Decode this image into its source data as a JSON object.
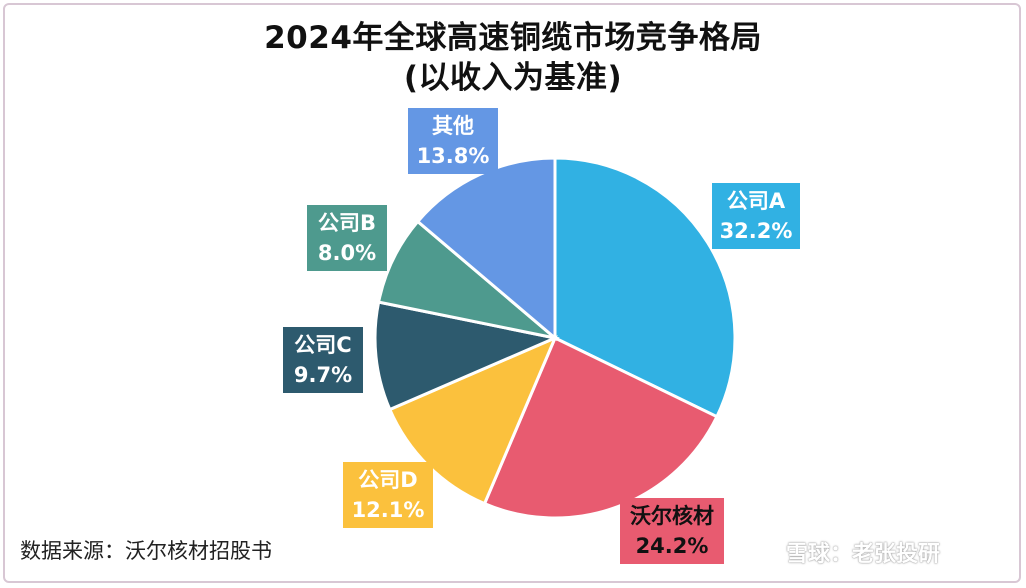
{
  "title_line1": "2024年全球高速铜缆市场竞争格局",
  "title_line2": "(以收入为基准)",
  "source": "数据来源：沃尔核材招股书",
  "watermark": "雪球：老张投研",
  "chart_data": {
    "type": "pie",
    "title": "2024年全球高速铜缆市场竞争格局 (以收入为基准)",
    "unit": "%",
    "slices": [
      {
        "name": "公司A",
        "value": 32.2,
        "value_label": "32.2%",
        "color": "#31b1e3"
      },
      {
        "name": "沃尔核材",
        "value": 24.2,
        "value_label": "24.2%",
        "color": "#e85b70"
      },
      {
        "name": "公司D",
        "value": 12.1,
        "value_label": "12.1%",
        "color": "#fbc13d"
      },
      {
        "name": "公司C",
        "value": 9.7,
        "value_label": "9.7%",
        "color": "#2d5a6e"
      },
      {
        "name": "公司B",
        "value": 8.0,
        "value_label": "8.0%",
        "color": "#4e9a8e"
      },
      {
        "name": "其他",
        "value": 13.8,
        "value_label": "13.8%",
        "color": "#6497e4"
      }
    ]
  }
}
